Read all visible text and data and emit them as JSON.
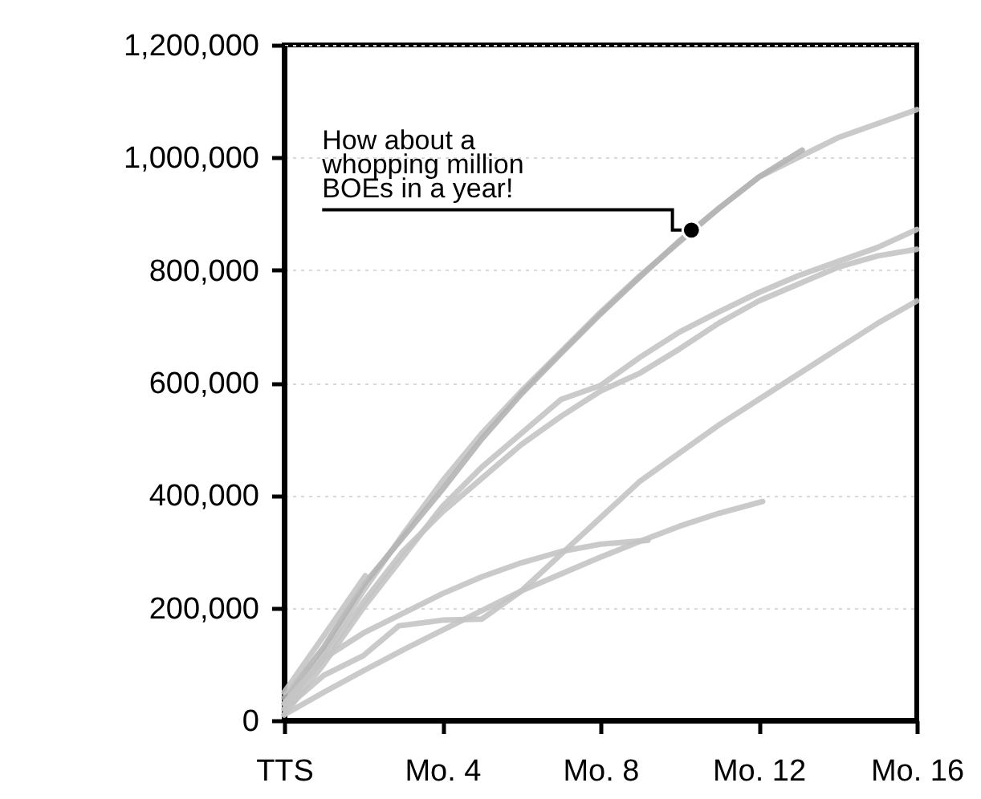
{
  "chart_data": {
    "type": "line",
    "xlim": [
      0,
      16
    ],
    "xticks": [
      {
        "value": 0,
        "label": "TTS"
      },
      {
        "value": 4,
        "label": "Mo. 4"
      },
      {
        "value": 8,
        "label": "Mo. 8"
      },
      {
        "value": 12,
        "label": "Mo. 12"
      },
      {
        "value": 16,
        "label": "Mo. 16"
      }
    ],
    "ylim": [
      0,
      1200000
    ],
    "yticks": [
      0,
      {
        "value": 200000,
        "label": "200,000"
      },
      {
        "value": 400000,
        "label": "400,000"
      },
      {
        "value": 600000,
        "label": "600,000"
      },
      {
        "value": 800000,
        "label": "800,000"
      },
      {
        "value": 1000000,
        "label": "1,000,000"
      },
      {
        "value": 1200000,
        "label": "1,200,000"
      }
    ],
    "grid": "y",
    "marker": "none",
    "line_style": "solid",
    "annotations": [
      {
        "text": "How about a\nwhopping million\nBOEs in a year!",
        "x": 10.3,
        "y": 871000
      }
    ],
    "series": [
      {
        "color": "#c4c4c4",
        "x": [
          0,
          1,
          2,
          3,
          4,
          5,
          6,
          7,
          8,
          9,
          10,
          11,
          12,
          13,
          14,
          15,
          16
        ],
        "values": [
          20000,
          120000,
          230000,
          330000,
          425000,
          510000,
          585000,
          655000,
          725000,
          790000,
          850000,
          910000,
          965000,
          1000000,
          1035000,
          1060000,
          1085000
        ]
      },
      {
        "color": "#b4b4b4",
        "x": [
          0,
          1,
          2,
          3,
          4,
          5,
          6,
          7,
          8,
          9,
          10,
          11,
          12,
          13.1
        ],
        "values": [
          40000,
          130000,
          240000,
          325000,
          410000,
          500000,
          580000,
          652000,
          722000,
          788000,
          852000,
          910000,
          965000,
          1013000
        ]
      },
      {
        "color": "#c4c4c4",
        "x": [
          0,
          1,
          2,
          3,
          4,
          5,
          6,
          7,
          8,
          9,
          10,
          11,
          12,
          13,
          14,
          15,
          16
        ],
        "values": [
          10000,
          100000,
          200000,
          290000,
          380000,
          450000,
          510000,
          570000,
          595000,
          645000,
          690000,
          726000,
          760000,
          790000,
          815000,
          840000,
          872000
        ]
      },
      {
        "color": "#c4c4c4",
        "x": [
          0,
          1,
          2,
          3,
          4,
          5,
          6,
          7,
          8,
          9,
          10,
          11,
          12,
          13,
          14,
          15,
          16
        ],
        "values": [
          30000,
          110000,
          210000,
          300000,
          370000,
          430000,
          490000,
          540000,
          585000,
          617000,
          660000,
          706000,
          745000,
          775000,
          805000,
          825000,
          837000
        ]
      },
      {
        "color": "#c4c4c4",
        "x": [
          0,
          1,
          2.05
        ],
        "values": [
          50000,
          150000,
          257000
        ]
      },
      {
        "color": "#c4c4c4",
        "x": [
          0,
          1,
          2,
          2.9,
          4,
          5,
          6,
          7,
          8,
          9,
          10,
          11,
          12,
          13,
          14,
          15,
          16
        ],
        "values": [
          20000,
          80000,
          115000,
          168000,
          178000,
          180000,
          230000,
          295000,
          360000,
          425000,
          475000,
          525000,
          570000,
          615000,
          660000,
          705000,
          745000
        ]
      },
      {
        "color": "#c4c4c4",
        "x": [
          0,
          1,
          2,
          3,
          4,
          5,
          6,
          7,
          8,
          9.2
        ],
        "values": [
          30000,
          110000,
          155000,
          190000,
          225000,
          255000,
          280000,
          300000,
          313000,
          320000
        ]
      },
      {
        "color": "#c4c4c4",
        "x": [
          0,
          1,
          2,
          3,
          4,
          5,
          6,
          7,
          8,
          9,
          10,
          11,
          12.1
        ],
        "values": [
          10000,
          50000,
          88000,
          125000,
          160000,
          195000,
          230000,
          260000,
          290000,
          318000,
          345000,
          368000,
          389000
        ]
      }
    ]
  }
}
